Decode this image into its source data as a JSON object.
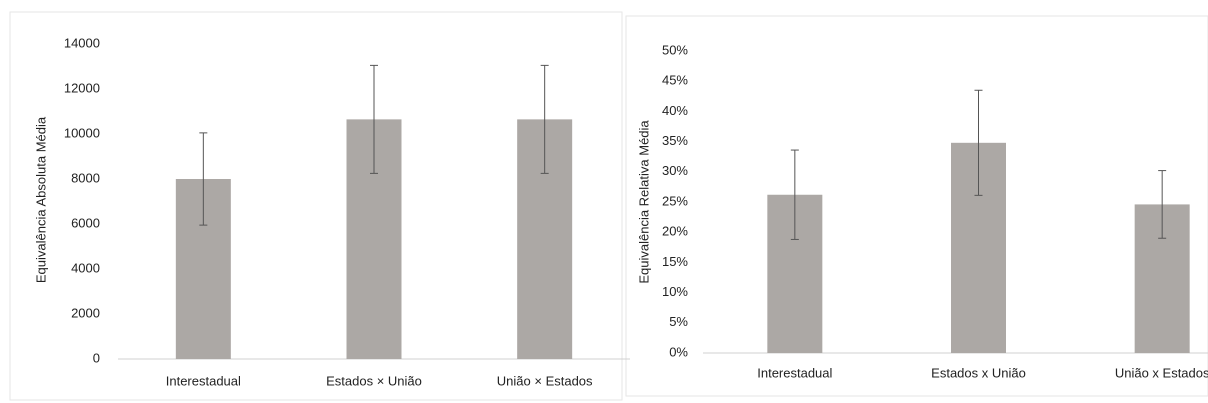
{
  "chart_data": [
    {
      "type": "bar",
      "y_label": "Equivalência Absoluta Média",
      "categories": [
        "Interestadual",
        "Estados × União",
        "União × Estados"
      ],
      "values": [
        8000,
        10650,
        10650
      ],
      "errors": [
        2050,
        2400,
        2400
      ],
      "color": "#aca8a5",
      "ylim": [
        0,
        14000
      ],
      "yticks": [
        0,
        2000,
        4000,
        6000,
        8000,
        10000,
        12000,
        14000
      ]
    },
    {
      "type": "bar",
      "y_label": "Equivalência Relativa Média",
      "categories": [
        "Interestadual",
        "Estados x União",
        "União x Estados"
      ],
      "values": [
        26.2,
        34.8,
        24.6
      ],
      "errors": [
        7.4,
        8.7,
        5.6
      ],
      "color": "#aca8a5",
      "ylim": [
        0,
        50
      ],
      "yticks": [
        {
          "value": 0,
          "label": "0%"
        },
        {
          "value": 5,
          "label": "5%"
        },
        {
          "value": 10,
          "label": "10%"
        },
        {
          "value": 15,
          "label": "15%"
        },
        {
          "value": 20,
          "label": "20%"
        },
        {
          "value": 25,
          "label": "25%"
        },
        {
          "value": 30,
          "label": "30%"
        },
        {
          "value": 35,
          "label": "35%"
        },
        {
          "value": 40,
          "label": "40%"
        },
        {
          "value": 45,
          "label": "45%"
        },
        {
          "value": 50,
          "label": "50%"
        }
      ]
    }
  ]
}
